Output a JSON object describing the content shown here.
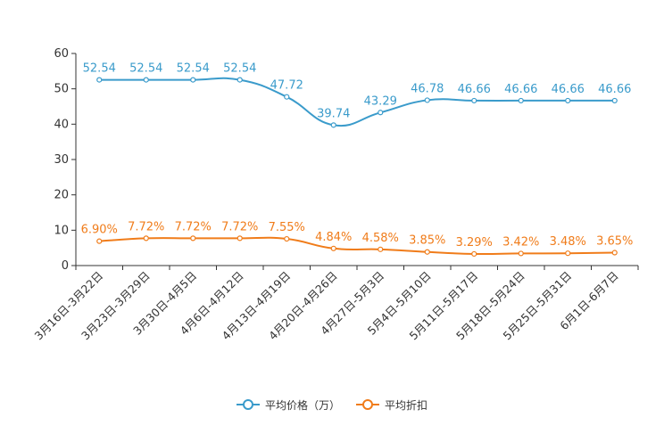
{
  "chart_data": {
    "type": "line",
    "title": "",
    "xlabel": "",
    "ylabel": "",
    "ylim": [
      0,
      60
    ],
    "yticks": [
      0,
      10,
      20,
      30,
      40,
      50,
      60
    ],
    "grid": false,
    "categories": [
      "3月16日-3月22日",
      "3月23日-3月29日",
      "3月30日-4月5日",
      "4月6日-4月12日",
      "4月13日-4月19日",
      "4月20日-4月26日",
      "4月27日-5月3日",
      "5月4日-5月10日",
      "5月11日-5月17日",
      "5月18日-5月24日",
      "5月25日-5月31日",
      "6月1日-6月7日"
    ],
    "series": [
      {
        "name": "平均价格（万）",
        "color": "#3a9bcb",
        "values": [
          52.54,
          52.54,
          52.54,
          52.54,
          47.72,
          39.74,
          43.29,
          46.78,
          46.66,
          46.66,
          46.66,
          46.66
        ],
        "labels": [
          "52.54",
          "52.54",
          "52.54",
          "52.54",
          "47.72",
          "39.74",
          "43.29",
          "46.78",
          "46.66",
          "46.66",
          "46.66",
          "46.66"
        ]
      },
      {
        "name": "平均折扣",
        "color": "#f07c1a",
        "values": [
          6.9,
          7.72,
          7.72,
          7.72,
          7.55,
          4.84,
          4.58,
          3.85,
          3.29,
          3.42,
          3.48,
          3.65
        ],
        "labels": [
          "6.90%",
          "7.72%",
          "7.72%",
          "7.72%",
          "7.55%",
          "4.84%",
          "4.58%",
          "3.85%",
          "3.29%",
          "3.42%",
          "3.48%",
          "3.65%"
        ]
      }
    ],
    "legend_position": "bottom-center"
  },
  "legend": {
    "items": [
      {
        "label": "平均价格（万）",
        "color": "#3a9bcb"
      },
      {
        "label": "平均折扣",
        "color": "#f07c1a"
      }
    ]
  }
}
